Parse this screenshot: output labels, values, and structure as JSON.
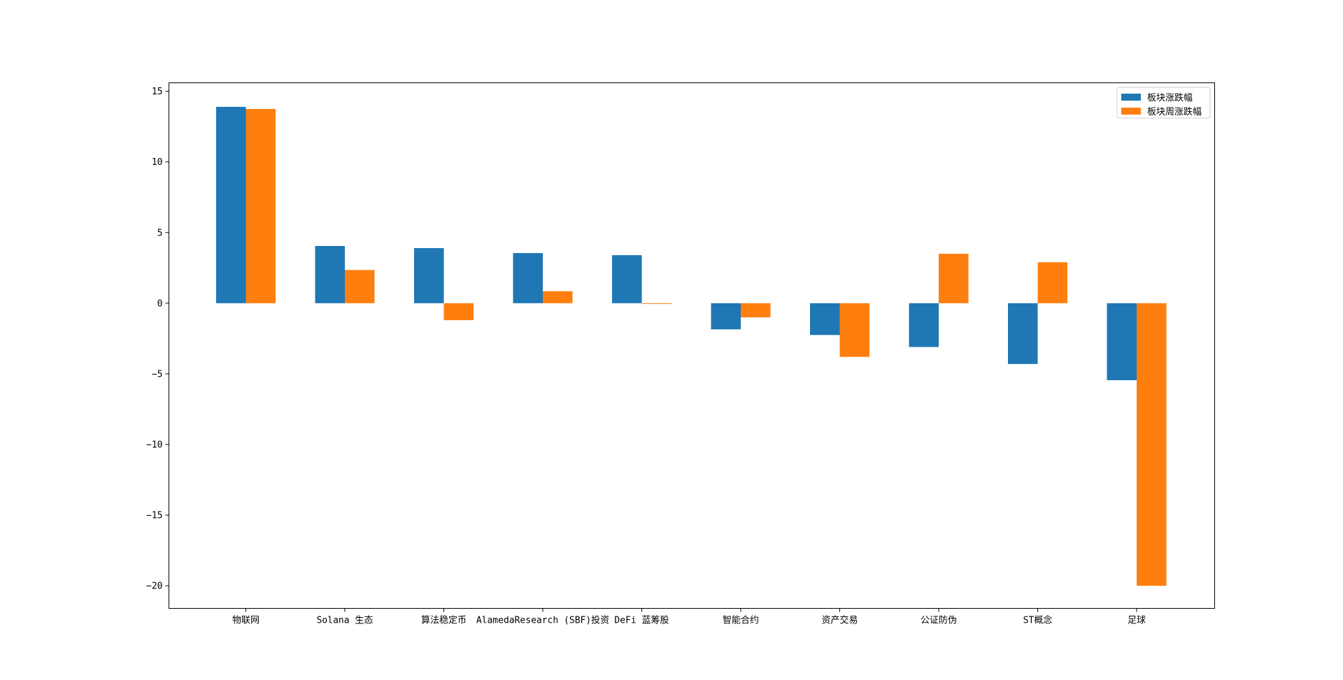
{
  "chart_data": {
    "type": "bar",
    "categories": [
      "物联网",
      "Solana 生态",
      "算法稳定币",
      "AlamedaResearch (SBF)投资",
      "DeFi 蓝筹股",
      "智能合约",
      "资产交易",
      "公证防伪",
      "ST概念",
      "足球"
    ],
    "series": [
      {
        "name": "板块涨跌幅",
        "color": "#1f77b4",
        "values": [
          13.9,
          4.05,
          3.9,
          3.55,
          3.4,
          -1.85,
          -2.25,
          -3.1,
          -4.3,
          -5.45
        ]
      },
      {
        "name": "板块周涨跌幅",
        "color": "#ff7f0e",
        "values": [
          13.75,
          2.35,
          -1.2,
          0.85,
          -0.05,
          -1.0,
          -3.8,
          3.5,
          2.9,
          -20.0
        ]
      }
    ],
    "yticks": [
      15,
      10,
      5,
      0,
      -5,
      -10,
      -15,
      -20
    ],
    "ylim": [
      -21.6,
      15.6
    ],
    "legend_position": "top-right",
    "grid": false
  }
}
